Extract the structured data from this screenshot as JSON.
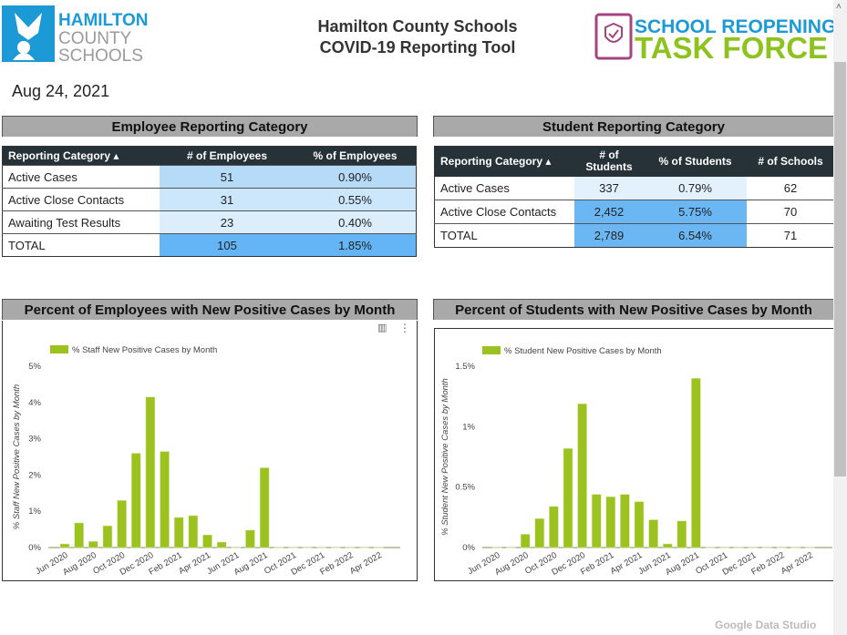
{
  "header": {
    "logo_left_text": [
      "HAMILTON",
      "COUNTY",
      "SCHOOLS"
    ],
    "title_line1": "Hamilton County Schools",
    "title_line2": "COVID-19 Reporting Tool",
    "logo_right_text": [
      "SCHOOL REOPENING",
      "TASK FORCE"
    ],
    "date": "Aug 24, 2021"
  },
  "colors": {
    "bar": "#9bc21f",
    "header_dark": "#263238",
    "section_gray": "#a9a9a9",
    "blue_strong": "#64b5f6",
    "blue_mid": "#b5dbf8",
    "blue_light": "#cce6fb",
    "blue_pale": "#dcedfc",
    "brand_blue": "#1b9ad6",
    "brand_green": "#8dc21f",
    "brand_purple": "#a4457f"
  },
  "employee": {
    "section_title": "Employee Reporting Category",
    "columns": [
      "Reporting Category ▴",
      "# of Employees",
      "% of Employees"
    ],
    "rows": [
      [
        "Active Cases",
        "51",
        "0.90%"
      ],
      [
        "Active Close Contacts",
        "31",
        "0.55%"
      ],
      [
        "Awaiting Test Results",
        "23",
        "0.40%"
      ],
      [
        "TOTAL",
        "105",
        "1.85%"
      ]
    ]
  },
  "student": {
    "section_title": "Student Reporting Category",
    "columns": [
      "Reporting Category ▴",
      "# of Students",
      "% of Students",
      "# of Schools"
    ],
    "rows": [
      [
        "Active Cases",
        "337",
        "0.79%",
        "62"
      ],
      [
        "Active Close Contacts",
        "2,452",
        "5.75%",
        "70"
      ],
      [
        "TOTAL",
        "2,789",
        "6.54%",
        "71"
      ]
    ]
  },
  "chart_data": [
    {
      "type": "bar",
      "title": "Percent of Employees with New Positive Cases by Month",
      "ylabel": "% Staff New Positive Cases by Month",
      "xlabel": "",
      "legend": "top-left",
      "ylim": [
        0,
        5
      ],
      "yticks": [
        "0%",
        "1%",
        "2%",
        "3%",
        "4%",
        "5%"
      ],
      "xticks": [
        "Jun 2020",
        "Aug 2020",
        "Oct 2020",
        "Dec 2020",
        "Feb 2021",
        "Apr 2021",
        "Jun 2021",
        "Aug 2021",
        "Oct 2021",
        "Dec 2021",
        "Feb 2022",
        "Apr 2022"
      ],
      "categories": [
        "Jun 2020",
        "Jul 2020",
        "Aug 2020",
        "Sep 2020",
        "Oct 2020",
        "Nov 2020",
        "Dec 2020",
        "Jan 2021",
        "Feb 2021",
        "Mar 2021",
        "Apr 2021",
        "May 2021",
        "Jun 2021",
        "Jul 2021",
        "Aug 2021",
        "Sep 2021",
        "Oct 2021",
        "Nov 2021",
        "Dec 2021",
        "Jan 2022",
        "Feb 2022",
        "Mar 2022",
        "Apr 2022"
      ],
      "series": [
        {
          "name": "% Staff New Positive Cases by Month",
          "values": [
            0.1,
            0.68,
            0.17,
            0.6,
            1.3,
            2.6,
            4.15,
            2.65,
            0.83,
            0.88,
            0.35,
            0.15,
            0,
            0.48,
            2.2,
            0,
            0,
            0,
            0,
            0,
            0,
            0,
            0
          ]
        }
      ]
    },
    {
      "type": "bar",
      "title": "Percent of Students with New Positive Cases by Month",
      "ylabel": "% Student New Positive Cases by Month",
      "xlabel": "",
      "legend": "top-left",
      "ylim": [
        0,
        1.5
      ],
      "yticks": [
        "0%",
        "0.5%",
        "1%",
        "1.5%"
      ],
      "xticks": [
        "Jun 2020",
        "Aug 2020",
        "Oct 2020",
        "Dec 2020",
        "Feb 2021",
        "Apr 2021",
        "Jun 2021",
        "Aug 2021",
        "Oct 2021",
        "Dec 2021",
        "Feb 2022",
        "Apr 2022"
      ],
      "categories": [
        "Jun 2020",
        "Jul 2020",
        "Aug 2020",
        "Sep 2020",
        "Oct 2020",
        "Nov 2020",
        "Dec 2020",
        "Jan 2021",
        "Feb 2021",
        "Mar 2021",
        "Apr 2021",
        "May 2021",
        "Jun 2021",
        "Jul 2021",
        "Aug 2021",
        "Sep 2021",
        "Oct 2021",
        "Nov 2021",
        "Dec 2021",
        "Jan 2022",
        "Feb 2022",
        "Mar 2022",
        "Apr 2022"
      ],
      "series": [
        {
          "name": "% Student New Positive Cases by Month",
          "values": [
            0,
            0,
            0.11,
            0.24,
            0.34,
            0.82,
            1.19,
            0.44,
            0.42,
            0.44,
            0.38,
            0.23,
            0.03,
            0.22,
            1.4,
            0,
            0,
            0,
            0,
            0,
            0,
            0,
            0
          ]
        }
      ]
    }
  ],
  "footer": {
    "brand": "Google Data Studio"
  }
}
